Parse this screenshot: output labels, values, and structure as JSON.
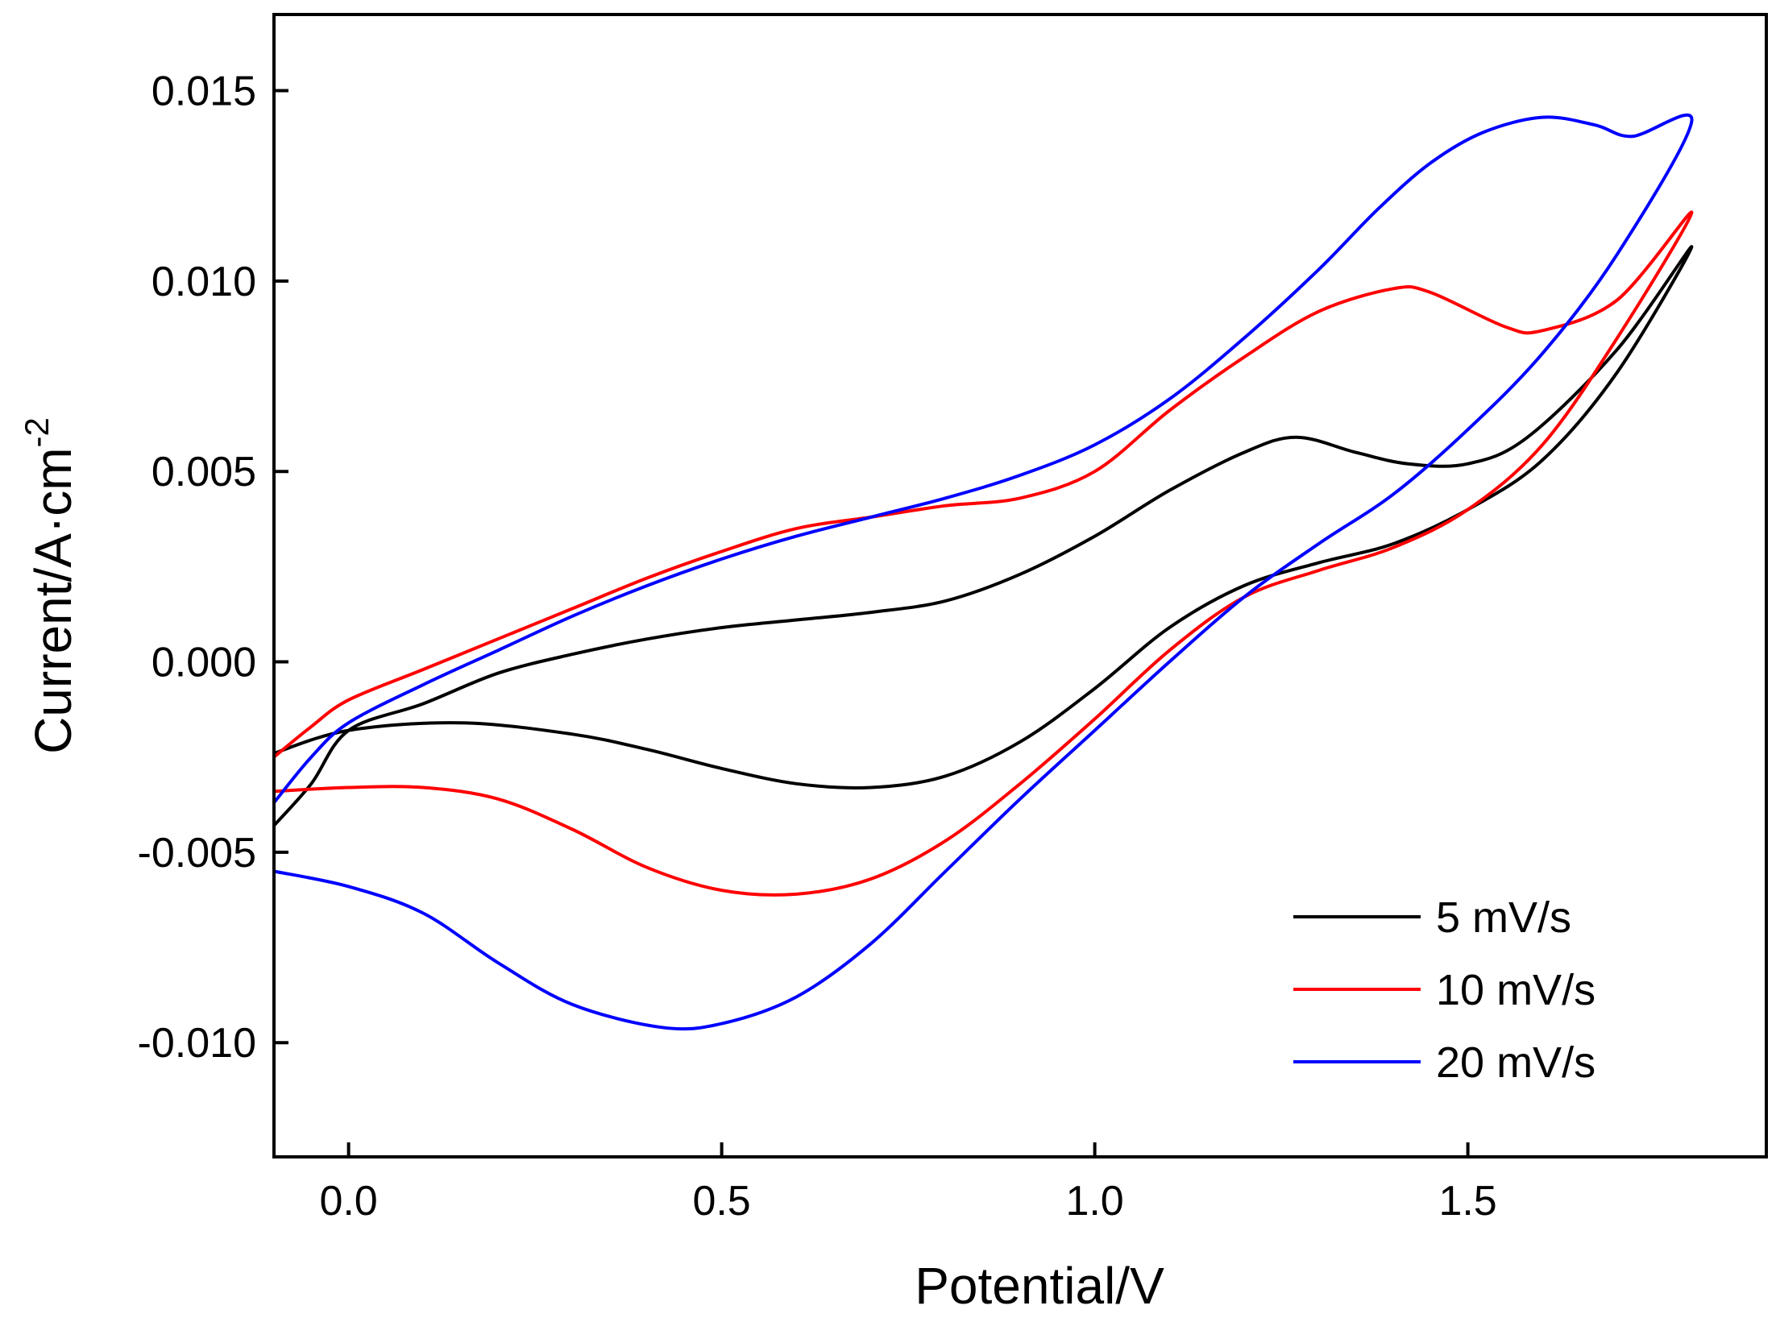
{
  "chart_data": {
    "type": "line",
    "title": "",
    "xlabel": "Potential/V",
    "ylabel": "Current/A·cm",
    "ylabel_superscript": "-2",
    "xlim": [
      -0.1,
      1.9
    ],
    "ylim": [
      -0.013,
      0.017
    ],
    "x_ticks": [
      0.0,
      0.5,
      1.0,
      1.5
    ],
    "x_tick_labels": [
      "0.0",
      "0.5",
      "1.0",
      "1.5"
    ],
    "y_ticks": [
      -0.01,
      -0.005,
      0.0,
      0.005,
      0.01,
      0.015
    ],
    "y_tick_labels": [
      "-0.010",
      "-0.005",
      "0.000",
      "0.005",
      "0.010",
      "0.015"
    ],
    "grid": false,
    "legend_position": "bottom-right",
    "series": [
      {
        "name": "5 mV/s",
        "color": "#000000",
        "points": [
          [
            -0.1,
            -0.0043
          ],
          [
            -0.05,
            -0.0032
          ],
          [
            0.0,
            -0.0018
          ],
          [
            0.1,
            -0.0011
          ],
          [
            0.2,
            -0.0003
          ],
          [
            0.3,
            0.0002
          ],
          [
            0.4,
            0.0006
          ],
          [
            0.5,
            0.0009
          ],
          [
            0.6,
            0.0011
          ],
          [
            0.7,
            0.0013
          ],
          [
            0.8,
            0.0016
          ],
          [
            0.9,
            0.0023
          ],
          [
            1.0,
            0.0033
          ],
          [
            1.1,
            0.0045
          ],
          [
            1.2,
            0.0055
          ],
          [
            1.27,
            0.0059
          ],
          [
            1.35,
            0.0055
          ],
          [
            1.42,
            0.0052
          ],
          [
            1.5,
            0.0052
          ],
          [
            1.58,
            0.0059
          ],
          [
            1.7,
            0.0082
          ],
          [
            1.8,
            0.0109
          ],
          [
            1.7,
            0.0076
          ],
          [
            1.6,
            0.0053
          ],
          [
            1.5,
            0.004
          ],
          [
            1.4,
            0.0031
          ],
          [
            1.3,
            0.0026
          ],
          [
            1.2,
            0.002
          ],
          [
            1.1,
            0.0009
          ],
          [
            1.0,
            -0.0007
          ],
          [
            0.9,
            -0.0021
          ],
          [
            0.8,
            -0.003
          ],
          [
            0.7,
            -0.0033
          ],
          [
            0.6,
            -0.0032
          ],
          [
            0.5,
            -0.0028
          ],
          [
            0.4,
            -0.0023
          ],
          [
            0.3,
            -0.0019
          ],
          [
            0.15,
            -0.0016
          ],
          [
            0.0,
            -0.0018
          ],
          [
            -0.1,
            -0.0024
          ]
        ]
      },
      {
        "name": "10 mV/s",
        "color": "#ff0000",
        "points": [
          [
            -0.1,
            -0.0025
          ],
          [
            -0.05,
            -0.0017
          ],
          [
            0.0,
            -0.001
          ],
          [
            0.1,
            -0.0002
          ],
          [
            0.2,
            0.0006
          ],
          [
            0.3,
            0.0014
          ],
          [
            0.4,
            0.0022
          ],
          [
            0.5,
            0.0029
          ],
          [
            0.6,
            0.0035
          ],
          [
            0.7,
            0.0038
          ],
          [
            0.8,
            0.0041
          ],
          [
            0.9,
            0.0043
          ],
          [
            1.0,
            0.005
          ],
          [
            1.1,
            0.0066
          ],
          [
            1.2,
            0.008
          ],
          [
            1.3,
            0.0092
          ],
          [
            1.4,
            0.0098
          ],
          [
            1.45,
            0.0097
          ],
          [
            1.55,
            0.0088
          ],
          [
            1.6,
            0.0087
          ],
          [
            1.7,
            0.0095
          ],
          [
            1.8,
            0.0118
          ],
          [
            1.7,
            0.0085
          ],
          [
            1.6,
            0.0057
          ],
          [
            1.5,
            0.004
          ],
          [
            1.4,
            0.003
          ],
          [
            1.3,
            0.0024
          ],
          [
            1.2,
            0.0017
          ],
          [
            1.1,
            0.0003
          ],
          [
            1.0,
            -0.0015
          ],
          [
            0.9,
            -0.0032
          ],
          [
            0.8,
            -0.0047
          ],
          [
            0.7,
            -0.0057
          ],
          [
            0.6,
            -0.0061
          ],
          [
            0.5,
            -0.006
          ],
          [
            0.4,
            -0.0054
          ],
          [
            0.3,
            -0.0044
          ],
          [
            0.2,
            -0.0036
          ],
          [
            0.1,
            -0.0033
          ],
          [
            0.0,
            -0.0033
          ],
          [
            -0.1,
            -0.0034
          ]
        ]
      },
      {
        "name": "20 mV/s",
        "color": "#0000ff",
        "points": [
          [
            -0.1,
            -0.0037
          ],
          [
            -0.05,
            -0.0025
          ],
          [
            0.0,
            -0.0016
          ],
          [
            0.1,
            -0.0006
          ],
          [
            0.2,
            0.0003
          ],
          [
            0.3,
            0.0012
          ],
          [
            0.4,
            0.002
          ],
          [
            0.5,
            0.0027
          ],
          [
            0.6,
            0.0033
          ],
          [
            0.7,
            0.0038
          ],
          [
            0.8,
            0.0043
          ],
          [
            0.9,
            0.0049
          ],
          [
            1.0,
            0.0057
          ],
          [
            1.1,
            0.0069
          ],
          [
            1.2,
            0.0085
          ],
          [
            1.3,
            0.0103
          ],
          [
            1.38,
            0.0119
          ],
          [
            1.45,
            0.0131
          ],
          [
            1.52,
            0.0139
          ],
          [
            1.6,
            0.0143
          ],
          [
            1.67,
            0.0141
          ],
          [
            1.72,
            0.0138
          ],
          [
            1.8,
            0.0142
          ],
          [
            1.7,
            0.0107
          ],
          [
            1.6,
            0.0081
          ],
          [
            1.5,
            0.0061
          ],
          [
            1.4,
            0.0044
          ],
          [
            1.3,
            0.0031
          ],
          [
            1.2,
            0.0017
          ],
          [
            1.1,
            0.0
          ],
          [
            1.0,
            -0.0018
          ],
          [
            0.9,
            -0.0036
          ],
          [
            0.8,
            -0.0055
          ],
          [
            0.7,
            -0.0074
          ],
          [
            0.6,
            -0.0088
          ],
          [
            0.5,
            -0.0095
          ],
          [
            0.42,
            -0.0096
          ],
          [
            0.3,
            -0.009
          ],
          [
            0.2,
            -0.0079
          ],
          [
            0.1,
            -0.0066
          ],
          [
            0.0,
            -0.0059
          ],
          [
            -0.1,
            -0.0055
          ]
        ]
      }
    ]
  }
}
